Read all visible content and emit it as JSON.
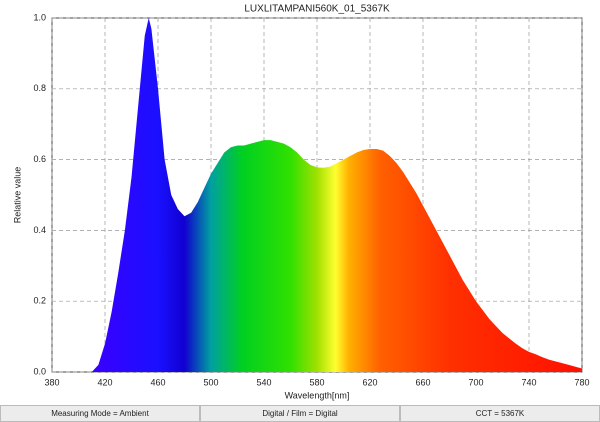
{
  "chart_data": {
    "type": "area",
    "title": "LUXLITAMPANI560K_01_5367K",
    "x_label": "Wavelength[nm]",
    "y_label": "Relative value",
    "x": [
      410,
      415,
      420,
      425,
      430,
      435,
      440,
      445,
      450,
      453,
      455,
      460,
      465,
      470,
      475,
      480,
      485,
      490,
      495,
      500,
      505,
      510,
      515,
      520,
      525,
      530,
      535,
      540,
      545,
      550,
      555,
      560,
      565,
      570,
      575,
      580,
      585,
      590,
      595,
      600,
      605,
      610,
      615,
      620,
      625,
      630,
      635,
      640,
      645,
      650,
      655,
      660,
      665,
      670,
      675,
      680,
      685,
      690,
      695,
      700,
      705,
      710,
      715,
      720,
      725,
      730,
      735,
      740,
      745,
      750,
      755,
      760,
      765,
      770,
      775,
      780
    ],
    "values": [
      0,
      0.02,
      0.08,
      0.17,
      0.28,
      0.4,
      0.55,
      0.75,
      0.95,
      1.0,
      0.97,
      0.8,
      0.6,
      0.5,
      0.46,
      0.44,
      0.45,
      0.48,
      0.52,
      0.56,
      0.59,
      0.62,
      0.635,
      0.64,
      0.64,
      0.645,
      0.65,
      0.655,
      0.655,
      0.65,
      0.645,
      0.635,
      0.62,
      0.6,
      0.585,
      0.578,
      0.577,
      0.58,
      0.59,
      0.6,
      0.61,
      0.62,
      0.627,
      0.63,
      0.63,
      0.625,
      0.61,
      0.59,
      0.565,
      0.535,
      0.505,
      0.47,
      0.435,
      0.4,
      0.365,
      0.33,
      0.295,
      0.26,
      0.23,
      0.2,
      0.175,
      0.15,
      0.13,
      0.11,
      0.095,
      0.08,
      0.067,
      0.057,
      0.05,
      0.042,
      0.035,
      0.03,
      0.025,
      0.02,
      0.015,
      0.01
    ],
    "xlim": [
      380,
      780
    ],
    "xticks": [
      380,
      420,
      460,
      500,
      540,
      580,
      620,
      660,
      700,
      740,
      780
    ],
    "ylim": [
      0,
      1
    ],
    "yticks": [
      {
        "value": 0,
        "label": "0.0"
      },
      0.2,
      0.4,
      0.6,
      0.8,
      {
        "value": 1,
        "label": "1.0"
      }
    ],
    "grid": true
  },
  "footer": [
    "Measuring Mode = Ambient",
    "Digital / Film = Digital",
    "CCT = 5367K"
  ]
}
